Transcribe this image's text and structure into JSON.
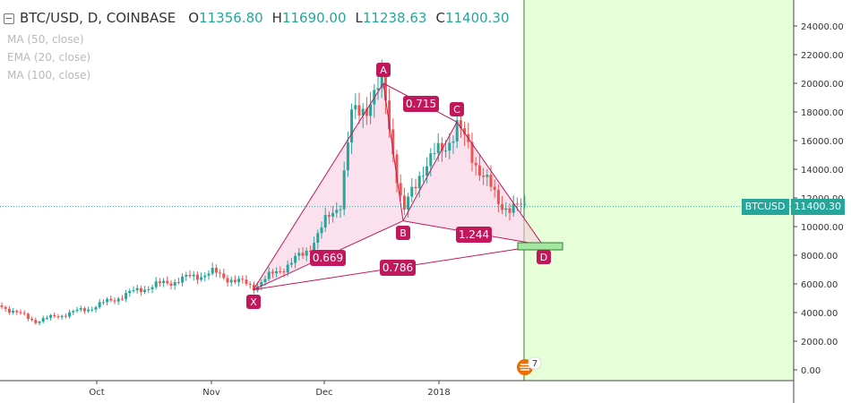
{
  "header": {
    "symbol": "BTC/USD, D, COINBASE",
    "o_label": "O",
    "o_value": "11356.80",
    "h_label": "H",
    "h_value": "11690.00",
    "l_label": "L",
    "l_value": "11238.63",
    "c_label": "C",
    "c_value": "11400.30"
  },
  "indicators": [
    "MA (50, close)",
    "EMA (20, close)",
    "MA (100, close)"
  ],
  "price_tag": {
    "symbol": "BTCUSD",
    "value": "11400.30"
  },
  "badge": {
    "count": "7"
  },
  "colors": {
    "up": "#26a69a",
    "down": "#ef5350",
    "pattern": "#c2185b",
    "pattern_fill": "#f8c8e0",
    "future_zone": "#e6ffd9",
    "current_price_line": "#26a69a"
  },
  "chart_data": {
    "type": "candlestick",
    "y_ticks": [
      "24000.00",
      "22000.00",
      "20000.00",
      "18000.00",
      "16000.00",
      "14000.00",
      "12000.00",
      "10000.00",
      "8000.00",
      "6000.00",
      "4000.00",
      "2000.00",
      "0.00"
    ],
    "x_ticks": [
      "Oct",
      "Nov",
      "Dec",
      "2018"
    ],
    "current_price": 11400.3,
    "harmonic_pattern": {
      "points": [
        {
          "label": "X",
          "price": 5600
        },
        {
          "label": "A",
          "price": 20000
        },
        {
          "label": "B",
          "price": 10400
        },
        {
          "label": "C",
          "price": 17300
        },
        {
          "label": "D",
          "price": 8700
        }
      ],
      "ratios": [
        "0.715",
        "0.669",
        "1.244",
        "0.786"
      ]
    }
  }
}
